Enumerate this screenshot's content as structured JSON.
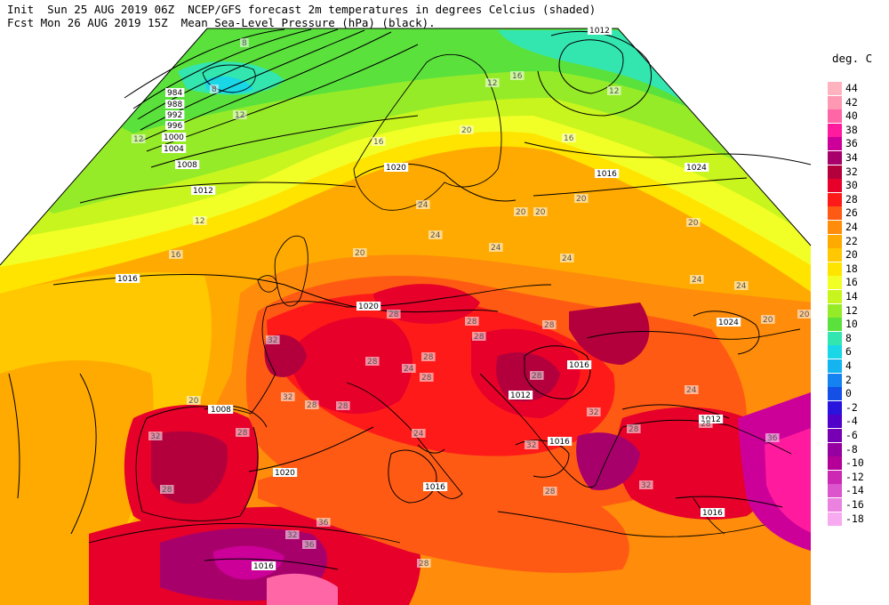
{
  "header": {
    "line1": "Init  Sun 25 AUG 2019 06Z  NCEP/GFS forecast 2m temperatures in degrees Celcius (shaded)",
    "line2": "Fcst Mon 26 AUG 2019 15Z  Mean Sea-Level Pressure (hPa) (black)."
  },
  "legend": {
    "title": "deg. C",
    "entries": [
      {
        "label": "44",
        "color": "#ffb3bf"
      },
      {
        "label": "42",
        "color": "#ff99b3"
      },
      {
        "label": "40",
        "color": "#ff66a6"
      },
      {
        "label": "38",
        "color": "#ff1a9e"
      },
      {
        "label": "36",
        "color": "#cc0099"
      },
      {
        "label": "34",
        "color": "#a8006b"
      },
      {
        "label": "32",
        "color": "#b3003c"
      },
      {
        "label": "30",
        "color": "#e6002a"
      },
      {
        "label": "28",
        "color": "#ff1a1a"
      },
      {
        "label": "26",
        "color": "#ff5a14"
      },
      {
        "label": "24",
        "color": "#ff8c0a"
      },
      {
        "label": "22",
        "color": "#ffaa00"
      },
      {
        "label": "20",
        "color": "#ffc800"
      },
      {
        "label": "18",
        "color": "#ffe400"
      },
      {
        "label": "16",
        "color": "#f2ff26"
      },
      {
        "label": "14",
        "color": "#c8f51e"
      },
      {
        "label": "12",
        "color": "#96eb28"
      },
      {
        "label": "10",
        "color": "#5ae13c"
      },
      {
        "label": "8",
        "color": "#33e6b0"
      },
      {
        "label": "6",
        "color": "#19d7e6"
      },
      {
        "label": "4",
        "color": "#14b4f0"
      },
      {
        "label": "2",
        "color": "#1482f0"
      },
      {
        "label": "0",
        "color": "#1450e6"
      },
      {
        "label": "-2",
        "color": "#2814dc"
      },
      {
        "label": "-4",
        "color": "#5000c8"
      },
      {
        "label": "-6",
        "color": "#7800b4"
      },
      {
        "label": "-8",
        "color": "#9600a0"
      },
      {
        "label": "-10",
        "color": "#b40096"
      },
      {
        "label": "-12",
        "color": "#cc28b4"
      },
      {
        "label": "-14",
        "color": "#dc55cc"
      },
      {
        "label": "-16",
        "color": "#ec82e0"
      },
      {
        "label": "-18",
        "color": "#f8aaf0"
      }
    ]
  },
  "isobar_labels": [
    "984",
    "988",
    "992",
    "996",
    "1000",
    "1004",
    "1008",
    "1012",
    "1016",
    "1020",
    "1024",
    "1012",
    "1016",
    "1020",
    "1024",
    "1016",
    "1012",
    "1016",
    "1016",
    "1020",
    "1016",
    "1016",
    "1016",
    "1012",
    "1008",
    "1012",
    "1016",
    "1012"
  ],
  "temperature_labels": [
    "8",
    "8",
    "12",
    "12",
    "12",
    "16",
    "12",
    "16",
    "12",
    "16",
    "20",
    "16",
    "20",
    "24",
    "24",
    "20",
    "24",
    "24",
    "24",
    "20",
    "20",
    "20",
    "24",
    "28",
    "28",
    "28",
    "28",
    "32",
    "32",
    "32",
    "28",
    "28",
    "28",
    "28",
    "24",
    "28",
    "28",
    "24",
    "32",
    "28",
    "32",
    "28",
    "36",
    "36",
    "32",
    "28",
    "28",
    "36",
    "32",
    "28",
    "28",
    "24",
    "20",
    "20",
    "20"
  ]
}
